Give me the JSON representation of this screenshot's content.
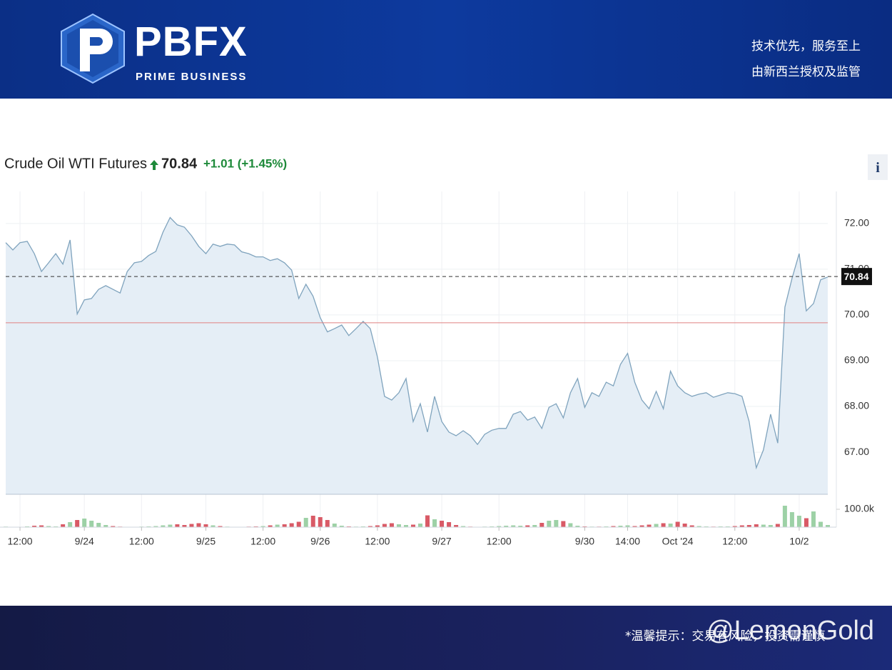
{
  "header": {
    "logo": "PBFX",
    "logo_subtitle": "PRIME BUSINESS",
    "slogan_1": "技术优先，服务至上",
    "slogan_2": "由新西兰授权及监管"
  },
  "footer": {
    "note": "*温馨提示：交易有风险，投资需谨慎",
    "watermark": "@LemonGold"
  },
  "info_button": "i",
  "chart_data": {
    "type": "line",
    "title": "Crude Oil WTI Futures",
    "price": 70.84,
    "change": "+1.01 (+1.45%)",
    "previous_close": 69.83,
    "color": "#7fa3bd",
    "area_color": "#e5eef6",
    "categories": [
      null,
      null,
      "12:00",
      null,
      null,
      null,
      null,
      null,
      null,
      null,
      null,
      "9/24",
      null,
      null,
      null,
      null,
      null,
      null,
      null,
      "12:00",
      null,
      null,
      null,
      null,
      null,
      null,
      null,
      null,
      "9/25",
      null,
      null,
      null,
      null,
      null,
      null,
      null,
      "12:00",
      null,
      null,
      null,
      null,
      null,
      null,
      null,
      "9/26",
      null,
      null,
      null,
      null,
      null,
      null,
      null,
      "12:00",
      null,
      null,
      null,
      null,
      null,
      null,
      null,
      null,
      "9/27",
      null,
      null,
      null,
      null,
      null,
      null,
      null,
      "12:00",
      null,
      null,
      null,
      null,
      null,
      null,
      null,
      null,
      null,
      null,
      null,
      "9/30",
      null,
      null,
      null,
      null,
      null,
      "14:00",
      null,
      null,
      null,
      null,
      null,
      null,
      "Oct '24",
      null,
      null,
      null,
      null,
      null,
      null,
      null,
      "12:00",
      null,
      null,
      null,
      null,
      null,
      null,
      null,
      null,
      "10/2",
      null,
      null,
      null,
      null
    ],
    "values": [
      71.58,
      71.42,
      71.58,
      71.61,
      71.34,
      70.95,
      71.14,
      71.34,
      71.11,
      71.64,
      70.02,
      70.33,
      70.36,
      70.56,
      70.64,
      70.56,
      70.48,
      70.95,
      71.14,
      71.17,
      71.3,
      71.39,
      71.81,
      72.13,
      71.97,
      71.92,
      71.73,
      71.5,
      71.34,
      71.55,
      71.5,
      71.55,
      71.53,
      71.38,
      71.34,
      71.27,
      71.27,
      71.19,
      71.23,
      71.14,
      70.98,
      70.36,
      70.67,
      70.41,
      69.94,
      69.63,
      69.7,
      69.78,
      69.55,
      69.7,
      69.86,
      69.7,
      69.08,
      68.22,
      68.14,
      68.3,
      68.61,
      67.67,
      68.06,
      67.44,
      68.22,
      67.67,
      67.44,
      67.36,
      67.47,
      67.36,
      67.17,
      67.39,
      67.48,
      67.52,
      67.52,
      67.83,
      67.89,
      67.7,
      67.77,
      67.52,
      67.98,
      68.06,
      67.75,
      68.3,
      68.61,
      67.98,
      68.3,
      68.22,
      68.53,
      68.45,
      68.92,
      69.16,
      68.53,
      68.14,
      67.95,
      68.33,
      67.95,
      68.77,
      68.45,
      68.3,
      68.22,
      68.27,
      68.3,
      68.2,
      68.25,
      68.3,
      68.28,
      68.22,
      67.67,
      66.66,
      67.05,
      67.83,
      67.2,
      70.17,
      70.8,
      71.34,
      70.09,
      70.25,
      70.77,
      70.83
    ],
    "ylim": [
      66.08,
      72.7
    ],
    "yticks": [
      {
        "value": 67,
        "label": "67.00"
      },
      {
        "value": 68,
        "label": "68.00"
      },
      {
        "value": 69,
        "label": "69.00"
      },
      {
        "value": 70,
        "label": "70.00"
      },
      {
        "value": 71,
        "label": "71.00"
      },
      {
        "value": 72,
        "label": "72.00"
      }
    ],
    "grid": true,
    "volume": {
      "axis": "y2",
      "up_color": "#9dd1a6",
      "down_color": "#d95a66",
      "values": [
        3000,
        2000,
        2000,
        4000,
        8000,
        10000,
        6000,
        4000,
        16000,
        28000,
        40000,
        48000,
        36000,
        24000,
        12000,
        6000,
        3000,
        2000,
        2000,
        3000,
        4000,
        6000,
        10000,
        14000,
        16000,
        12000,
        18000,
        22000,
        16000,
        10000,
        6000,
        3000,
        2000,
        2000,
        3000,
        4000,
        6000,
        10000,
        14000,
        16000,
        22000,
        30000,
        52000,
        64000,
        56000,
        40000,
        20000,
        8000,
        4000,
        3000,
        4000,
        6000,
        10000,
        18000,
        22000,
        16000,
        12000,
        14000,
        20000,
        66000,
        44000,
        36000,
        28000,
        12000,
        6000,
        3000,
        2000,
        3000,
        4000,
        6000,
        8000,
        10000,
        8000,
        10000,
        12000,
        24000,
        36000,
        40000,
        34000,
        22000,
        8000,
        4000,
        3000,
        3000,
        4000,
        6000,
        8000,
        10000,
        6000,
        10000,
        14000,
        18000,
        22000,
        20000,
        30000,
        20000,
        10000,
        6000,
        4000,
        3000,
        4000,
        4000,
        6000,
        10000,
        12000,
        16000,
        14000,
        12000,
        18000,
        120000,
        84000,
        64000,
        50000,
        88000,
        30000,
        12000
      ]
    },
    "y2lim": [
      0,
      172000
    ],
    "y2ticks": [
      {
        "value": 100000,
        "label": "100.0k"
      }
    ]
  }
}
